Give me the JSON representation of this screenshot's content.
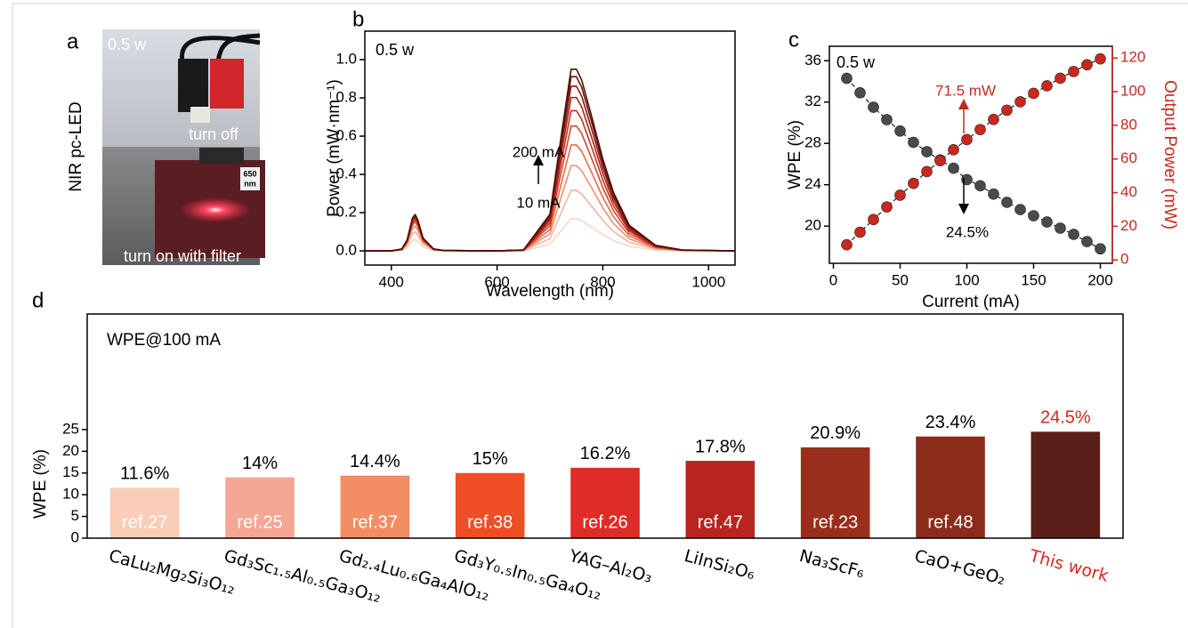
{
  "photo": {
    "panel_label": "a",
    "side_label": "NIR pc-LED",
    "note": "0.5 w",
    "top_caption": "turn off",
    "bottom_caption": "turn on with filter",
    "filter_label": [
      "650",
      "nm"
    ]
  },
  "chart_data": [
    {
      "type": "line",
      "panel_label": "b",
      "note": "0.5 w",
      "arrow_top_label": "200 mA",
      "arrow_bottom_label": "10 mA",
      "xlabel": "Wavelength (nm)",
      "ylabel": "Power (mW·nm⁻¹)",
      "xlim": [
        350,
        1050
      ],
      "xticks": [
        400,
        600,
        800,
        1000
      ],
      "ylim": [
        -0.074,
        1.149
      ],
      "yticks": [
        {
          "value": 0,
          "label": "0.0"
        },
        0.2,
        0.4,
        0.6,
        0.8,
        {
          "value": 1,
          "label": "1.0"
        }
      ],
      "x": [
        350,
        400,
        420,
        430,
        440,
        445,
        450,
        460,
        480,
        500,
        600,
        650,
        700,
        720,
        740,
        750,
        760,
        780,
        800,
        820,
        850,
        900,
        950,
        1050
      ],
      "series": [
        {
          "color": "#f9d5c8",
          "values": [
            0,
            0,
            0.003,
            0.018,
            0.054,
            0.06,
            0.051,
            0.021,
            0.003,
            0.001,
            0,
            0.001,
            0.034,
            0.102,
            0.168,
            0.168,
            0.158,
            0.122,
            0.085,
            0.054,
            0.024,
            0.005,
            0.001,
            0
          ]
        },
        {
          "color": "#f4b39c",
          "values": [
            0,
            0,
            0.005,
            0.03,
            0.09,
            0.1,
            0.085,
            0.035,
            0.005,
            0.001,
            0,
            0.002,
            0.064,
            0.192,
            0.317,
            0.317,
            0.298,
            0.23,
            0.16,
            0.102,
            0.045,
            0.01,
            0.002,
            0
          ]
        },
        {
          "color": "#ee8f72",
          "values": [
            0,
            0,
            0.007,
            0.039,
            0.117,
            0.13,
            0.111,
            0.046,
            0.007,
            0.001,
            0,
            0.002,
            0.09,
            0.27,
            0.446,
            0.446,
            0.419,
            0.324,
            0.225,
            0.144,
            0.063,
            0.014,
            0.002,
            0
          ]
        },
        {
          "color": "#e66a4c",
          "values": [
            0,
            0,
            0.008,
            0.045,
            0.135,
            0.15,
            0.128,
            0.053,
            0.008,
            0.002,
            0,
            0.003,
            0.112,
            0.336,
            0.554,
            0.554,
            0.521,
            0.403,
            0.28,
            0.179,
            0.078,
            0.017,
            0.003,
            0
          ]
        },
        {
          "color": "#d9452f",
          "values": [
            0,
            0,
            0.008,
            0.048,
            0.144,
            0.16,
            0.136,
            0.056,
            0.008,
            0.002,
            0,
            0.003,
            0.132,
            0.396,
            0.653,
            0.653,
            0.614,
            0.475,
            0.33,
            0.211,
            0.092,
            0.02,
            0.003,
            0
          ]
        },
        {
          "color": "#c52f20",
          "values": [
            0,
            0,
            0.009,
            0.051,
            0.153,
            0.17,
            0.145,
            0.06,
            0.009,
            0.002,
            0,
            0.004,
            0.148,
            0.444,
            0.733,
            0.733,
            0.688,
            0.533,
            0.37,
            0.237,
            0.104,
            0.022,
            0.004,
            0
          ]
        },
        {
          "color": "#a82417",
          "values": [
            0,
            0,
            0.009,
            0.054,
            0.162,
            0.18,
            0.153,
            0.063,
            0.009,
            0.002,
            0,
            0.004,
            0.162,
            0.486,
            0.802,
            0.802,
            0.753,
            0.583,
            0.405,
            0.259,
            0.113,
            0.024,
            0.004,
            0
          ]
        },
        {
          "color": "#8a1c12",
          "values": [
            0,
            0,
            0.009,
            0.056,
            0.167,
            0.185,
            0.157,
            0.065,
            0.009,
            0.002,
            0,
            0.004,
            0.174,
            0.522,
            0.861,
            0.861,
            0.809,
            0.626,
            0.435,
            0.278,
            0.122,
            0.026,
            0.004,
            0
          ]
        },
        {
          "color": "#6b150e",
          "values": [
            0,
            0,
            0.01,
            0.057,
            0.171,
            0.19,
            0.162,
            0.067,
            0.01,
            0.002,
            0,
            0.005,
            0.184,
            0.552,
            0.911,
            0.911,
            0.856,
            0.662,
            0.46,
            0.294,
            0.129,
            0.028,
            0.005,
            0
          ]
        },
        {
          "color": "#4a0e08",
          "values": [
            0,
            0,
            0.01,
            0.057,
            0.171,
            0.19,
            0.162,
            0.067,
            0.01,
            0.002,
            0,
            0.005,
            0.192,
            0.576,
            0.95,
            0.95,
            0.893,
            0.691,
            0.48,
            0.307,
            0.134,
            0.029,
            0.005,
            0
          ]
        }
      ]
    },
    {
      "type": "dual",
      "panel_label": "c",
      "note": "0.5 w",
      "power_label": "71.5 mW",
      "wpe_label": "24.5%",
      "xlabel": "Current (mA)",
      "ylabel": "WPE (%)",
      "y2label": "Output Power (mW)",
      "y2color": "#c62a1f",
      "xlim": [
        -3,
        209
      ],
      "xticks": [
        0,
        50,
        100,
        150,
        200
      ],
      "ylim": [
        16.4,
        37.4
      ],
      "yticks": [
        20,
        24,
        28,
        32,
        36
      ],
      "y2lim": [
        -2,
        127
      ],
      "y2ticks": [
        0,
        20,
        40,
        60,
        80,
        100,
        120
      ],
      "x": [
        10,
        20,
        30,
        40,
        50,
        60,
        70,
        80,
        90,
        100,
        110,
        120,
        130,
        140,
        150,
        160,
        170,
        180,
        190,
        200
      ],
      "series": [
        {
          "color": "#4a4a4a",
          "values": [
            34.3,
            32.9,
            31.5,
            30.3,
            29.2,
            28.1,
            27.2,
            26.4,
            25.6,
            24.5,
            23.9,
            23.1,
            22.3,
            21.6,
            21.0,
            20.4,
            19.8,
            19.2,
            18.5,
            17.8
          ]
        },
        {
          "color": "#c8281e",
          "axis": "y2",
          "values": [
            9,
            16.5,
            24,
            31.5,
            38.5,
            45.5,
            52.5,
            59,
            65.5,
            71.5,
            77.5,
            83.5,
            89,
            94,
            99,
            103.5,
            108,
            112,
            116,
            119.5
          ]
        }
      ]
    },
    {
      "type": "bar",
      "panel_label": "d",
      "note": "WPE@100 mA",
      "ylabel": "WPE (%)",
      "ylim": [
        0,
        51.6
      ],
      "yticks": [
        0,
        5,
        10,
        15,
        20,
        25
      ],
      "categories": [
        "CaLu₂Mg₂Si₃O₁₂",
        "Gd₃Sc₁.₅Al₀.₅Ga₃O₁₂",
        "Gd₂.₄Lu₀.₆Ga₄AlO₁₂",
        "Gd₃Y₀.₅In₀.₅Ga₄O₁₂",
        "YAG–Al₂O₃",
        "LiInSi₂O₆",
        "Na₃ScF₆",
        "CaO+GeO₂",
        "This work"
      ],
      "values": [
        11.6,
        14,
        14.4,
        15,
        16.2,
        17.8,
        20.9,
        23.4,
        24.5
      ],
      "value_labels": [
        "11.6%",
        "14%",
        "14.4%",
        "15%",
        "16.2%",
        "17.8%",
        "20.9%",
        "23.4%",
        "24.5%"
      ],
      "ref_labels": [
        "ref.27",
        "ref.25",
        "ref.37",
        "ref.38",
        "ref.26",
        "ref.47",
        "ref.23",
        "ref.48",
        null
      ],
      "colors": [
        "#f9cdb8",
        "#f5a795",
        "#f38d64",
        "#f04e26",
        "#de2d28",
        "#b8241f",
        "#9a2e1c",
        "#8b2c1a",
        "#5a1f19"
      ],
      "label_colors": [
        "#000000",
        "#000000",
        "#000000",
        "#000000",
        "#000000",
        "#000000",
        "#000000",
        "#000000",
        "#d42a20"
      ]
    }
  ]
}
